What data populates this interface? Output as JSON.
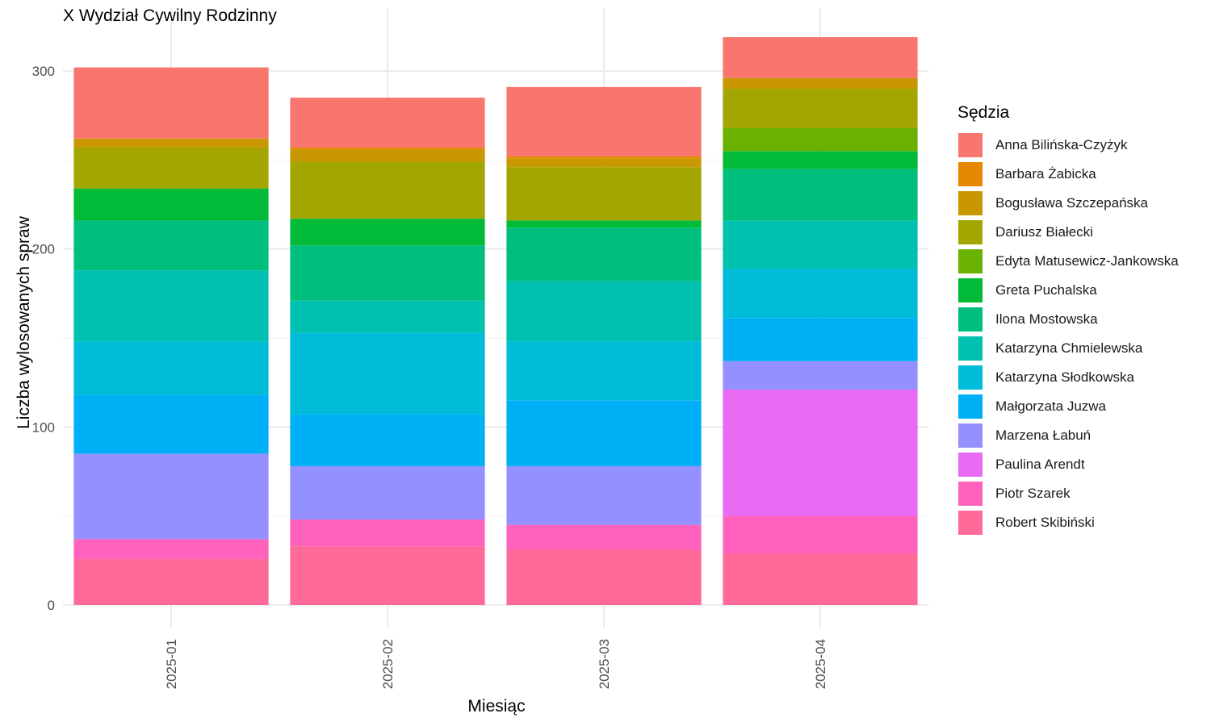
{
  "chart_data": {
    "type": "bar",
    "stacked": true,
    "title": "X Wydział Cywilny Rodzinny",
    "xlabel": "Miesiąc",
    "ylabel": "Liczba wylosowanych spraw",
    "legend_title": "Sędzia",
    "legend_position": "right",
    "grid": true,
    "ylim": [
      0,
      320
    ],
    "yticks": [
      0,
      100,
      200,
      300
    ],
    "categories": [
      "2025-01",
      "2025-02",
      "2025-03",
      "2025-04"
    ],
    "series": [
      {
        "name": "Anna Bilińska-Czyżyk",
        "color": "#F8766D",
        "values": [
          40,
          28,
          39,
          23
        ]
      },
      {
        "name": "Barbara Żabicka",
        "color": "#E58700",
        "values": [
          0,
          1,
          1,
          0
        ]
      },
      {
        "name": "Bogusława Szczepańska",
        "color": "#C99800",
        "values": [
          5,
          7,
          5,
          6
        ]
      },
      {
        "name": "Dariusz Białecki",
        "color": "#A3A500",
        "values": [
          23,
          32,
          30,
          22
        ]
      },
      {
        "name": "Edyta Matusewicz-Jankowska",
        "color": "#6BB100",
        "values": [
          0,
          0,
          0,
          13
        ]
      },
      {
        "name": "Greta Puchalska",
        "color": "#00BA38",
        "values": [
          18,
          15,
          4,
          10
        ]
      },
      {
        "name": "Ilona Mostowska",
        "color": "#00BF7D",
        "values": [
          28,
          31,
          30,
          29
        ]
      },
      {
        "name": "Katarzyna Chmielewska",
        "color": "#00C0AF",
        "values": [
          40,
          18,
          34,
          27
        ]
      },
      {
        "name": "Katarzyna Słodkowska",
        "color": "#00BCD8",
        "values": [
          30,
          46,
          33,
          28
        ]
      },
      {
        "name": "Małgorzata Juzwa",
        "color": "#00B0F6",
        "values": [
          33,
          29,
          37,
          24
        ]
      },
      {
        "name": "Marzena Łabuń",
        "color": "#9590FF",
        "values": [
          48,
          30,
          33,
          16
        ]
      },
      {
        "name": "Paulina Arendt",
        "color": "#E76BF3",
        "values": [
          0,
          0,
          0,
          71
        ]
      },
      {
        "name": "Piotr Szarek",
        "color": "#FF62BC",
        "values": [
          11,
          15,
          14,
          21
        ]
      },
      {
        "name": "Robert Skibiński",
        "color": "#FF6A98",
        "values": [
          26,
          33,
          31,
          29
        ]
      }
    ]
  }
}
